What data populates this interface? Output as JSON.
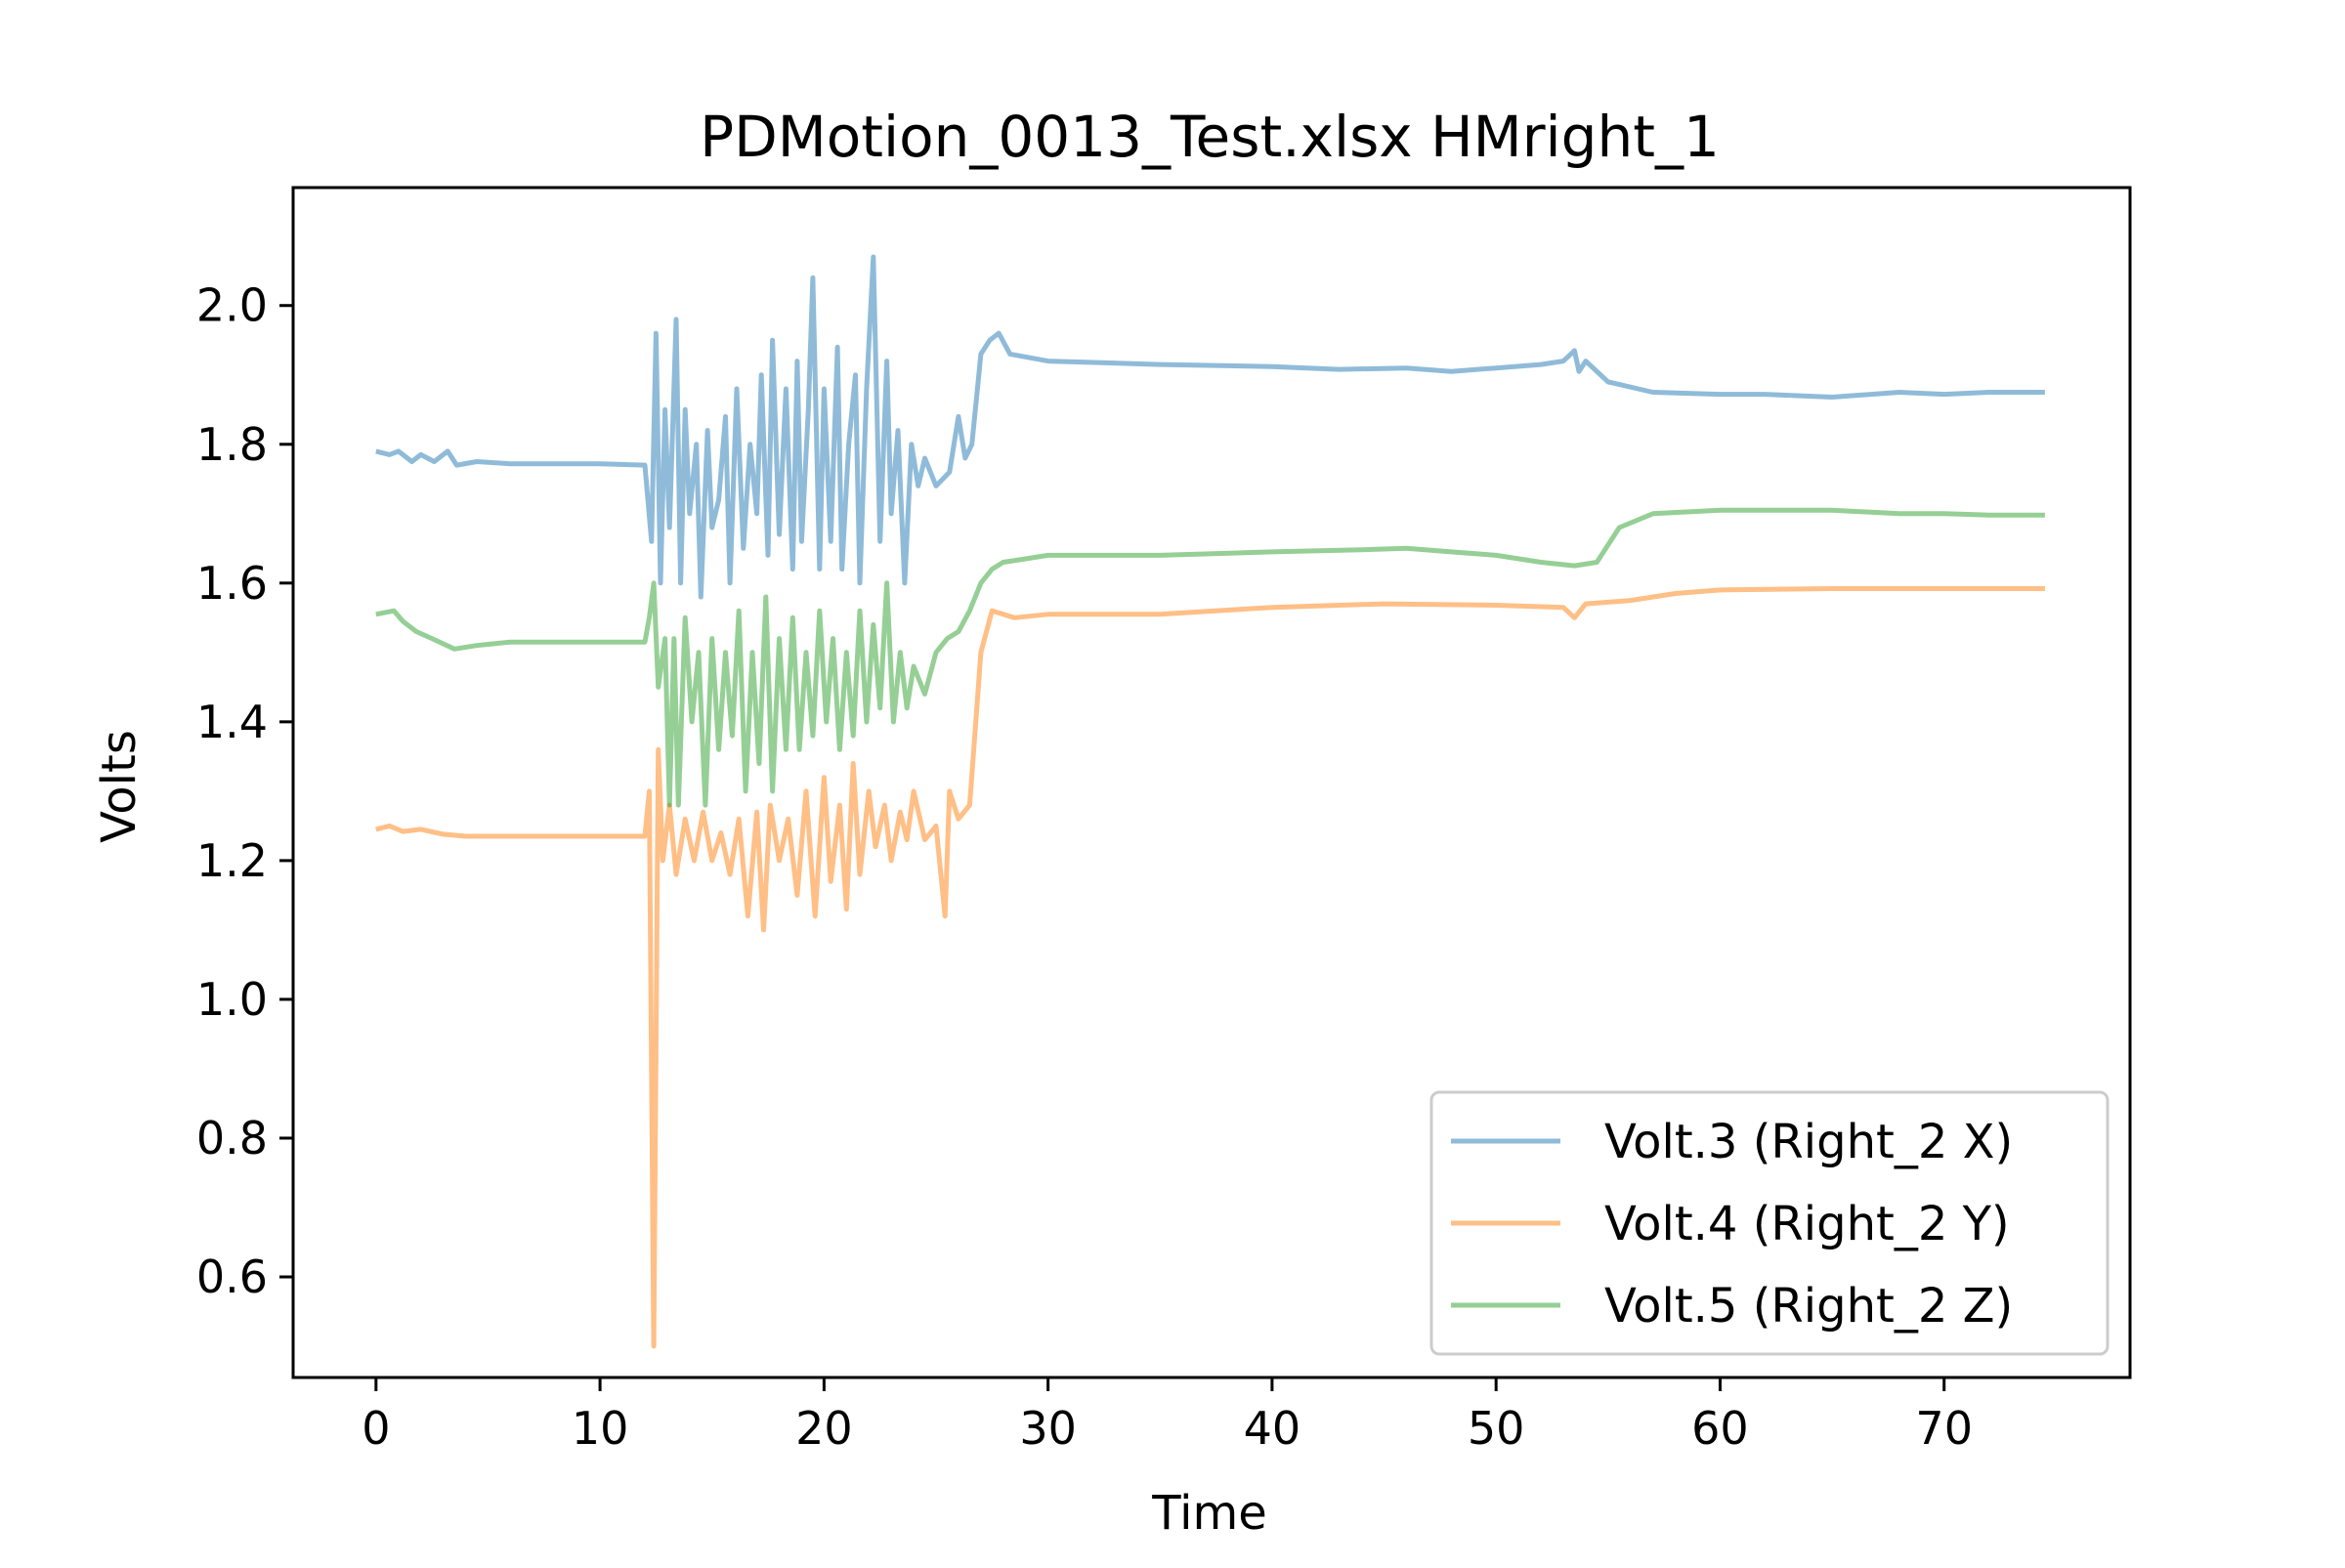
{
  "chart_data": {
    "type": "line",
    "title": "PDMotion_0013_Test.xlsx HMright_1",
    "xlabel": "Time",
    "ylabel": "Volts",
    "xlim": [
      -3.7,
      78.3
    ],
    "ylim": [
      0.455,
      2.17
    ],
    "xticks": [
      "0",
      "10",
      "20",
      "30",
      "40",
      "50",
      "60",
      "70"
    ],
    "yticks": [
      "0.6",
      "0.8",
      "1.0",
      "1.2",
      "1.4",
      "1.6",
      "1.8",
      "2.0"
    ],
    "grid": false,
    "legend_position": "lower right",
    "series": [
      {
        "name": "Volt.3 (Right_2 X)",
        "color": "#1f77b4",
        "points": [
          [
            0,
            1.79
          ],
          [
            0.6,
            1.785
          ],
          [
            1.0,
            1.79
          ],
          [
            1.6,
            1.775
          ],
          [
            2.0,
            1.785
          ],
          [
            2.6,
            1.775
          ],
          [
            3.2,
            1.79
          ],
          [
            3.6,
            1.77
          ],
          [
            4.5,
            1.775
          ],
          [
            6,
            1.772
          ],
          [
            8,
            1.772
          ],
          [
            10,
            1.772
          ],
          [
            12,
            1.77
          ],
          [
            12.3,
            1.66
          ],
          [
            12.5,
            1.96
          ],
          [
            12.7,
            1.6
          ],
          [
            12.9,
            1.85
          ],
          [
            13.1,
            1.68
          ],
          [
            13.4,
            1.98
          ],
          [
            13.6,
            1.6
          ],
          [
            13.8,
            1.85
          ],
          [
            14.0,
            1.7
          ],
          [
            14.3,
            1.8
          ],
          [
            14.5,
            1.58
          ],
          [
            14.8,
            1.82
          ],
          [
            15.0,
            1.68
          ],
          [
            15.3,
            1.72
          ],
          [
            15.6,
            1.84
          ],
          [
            15.8,
            1.6
          ],
          [
            16.1,
            1.88
          ],
          [
            16.4,
            1.65
          ],
          [
            16.7,
            1.8
          ],
          [
            17.0,
            1.7
          ],
          [
            17.2,
            1.9
          ],
          [
            17.5,
            1.64
          ],
          [
            17.7,
            1.95
          ],
          [
            18.0,
            1.67
          ],
          [
            18.3,
            1.88
          ],
          [
            18.6,
            1.62
          ],
          [
            18.8,
            1.92
          ],
          [
            19.0,
            1.66
          ],
          [
            19.3,
            1.85
          ],
          [
            19.5,
            2.04
          ],
          [
            19.8,
            1.62
          ],
          [
            20.0,
            1.88
          ],
          [
            20.3,
            1.66
          ],
          [
            20.6,
            1.94
          ],
          [
            20.8,
            1.62
          ],
          [
            21.1,
            1.8
          ],
          [
            21.4,
            1.9
          ],
          [
            21.6,
            1.6
          ],
          [
            21.9,
            1.88
          ],
          [
            22.2,
            2.07
          ],
          [
            22.5,
            1.66
          ],
          [
            22.8,
            1.92
          ],
          [
            23.0,
            1.7
          ],
          [
            23.3,
            1.82
          ],
          [
            23.6,
            1.6
          ],
          [
            23.9,
            1.8
          ],
          [
            24.2,
            1.74
          ],
          [
            24.5,
            1.78
          ],
          [
            25.0,
            1.74
          ],
          [
            25.6,
            1.76
          ],
          [
            26.0,
            1.84
          ],
          [
            26.3,
            1.78
          ],
          [
            26.6,
            1.8
          ],
          [
            27.0,
            1.93
          ],
          [
            27.4,
            1.95
          ],
          [
            27.8,
            1.96
          ],
          [
            28.3,
            1.93
          ],
          [
            30,
            1.92
          ],
          [
            35,
            1.915
          ],
          [
            40,
            1.912
          ],
          [
            43,
            1.908
          ],
          [
            46,
            1.91
          ],
          [
            48,
            1.905
          ],
          [
            50,
            1.91
          ],
          [
            52,
            1.915
          ],
          [
            53,
            1.92
          ],
          [
            53.5,
            1.935
          ],
          [
            53.7,
            1.905
          ],
          [
            54,
            1.92
          ],
          [
            55,
            1.89
          ],
          [
            57,
            1.875
          ],
          [
            60,
            1.872
          ],
          [
            62,
            1.872
          ],
          [
            65,
            1.868
          ],
          [
            68,
            1.875
          ],
          [
            70,
            1.872
          ],
          [
            72,
            1.875
          ],
          [
            74.5,
            1.875
          ]
        ]
      },
      {
        "name": "Volt.4 (Right_2 Y)",
        "color": "#ff7f0e",
        "points": [
          [
            0,
            1.245
          ],
          [
            0.6,
            1.25
          ],
          [
            1.2,
            1.242
          ],
          [
            2.0,
            1.245
          ],
          [
            3.0,
            1.238
          ],
          [
            4.0,
            1.235
          ],
          [
            6,
            1.235
          ],
          [
            8,
            1.235
          ],
          [
            10,
            1.235
          ],
          [
            12,
            1.235
          ],
          [
            12.2,
            1.3
          ],
          [
            12.4,
            0.5
          ],
          [
            12.6,
            1.36
          ],
          [
            12.8,
            1.2
          ],
          [
            13.1,
            1.28
          ],
          [
            13.4,
            1.18
          ],
          [
            13.8,
            1.26
          ],
          [
            14.2,
            1.2
          ],
          [
            14.6,
            1.27
          ],
          [
            15.0,
            1.2
          ],
          [
            15.4,
            1.24
          ],
          [
            15.8,
            1.18
          ],
          [
            16.2,
            1.26
          ],
          [
            16.6,
            1.12
          ],
          [
            17.0,
            1.27
          ],
          [
            17.3,
            1.1
          ],
          [
            17.6,
            1.28
          ],
          [
            18.0,
            1.2
          ],
          [
            18.4,
            1.26
          ],
          [
            18.8,
            1.15
          ],
          [
            19.2,
            1.3
          ],
          [
            19.6,
            1.12
          ],
          [
            20.0,
            1.32
          ],
          [
            20.3,
            1.17
          ],
          [
            20.7,
            1.28
          ],
          [
            21.0,
            1.13
          ],
          [
            21.3,
            1.34
          ],
          [
            21.6,
            1.18
          ],
          [
            22.0,
            1.3
          ],
          [
            22.3,
            1.22
          ],
          [
            22.7,
            1.28
          ],
          [
            23.0,
            1.2
          ],
          [
            23.4,
            1.27
          ],
          [
            23.7,
            1.23
          ],
          [
            24.0,
            1.3
          ],
          [
            24.5,
            1.23
          ],
          [
            25.0,
            1.25
          ],
          [
            25.4,
            1.12
          ],
          [
            25.6,
            1.3
          ],
          [
            26.0,
            1.26
          ],
          [
            26.5,
            1.28
          ],
          [
            27.0,
            1.5
          ],
          [
            27.5,
            1.56
          ],
          [
            28.5,
            1.55
          ],
          [
            30,
            1.555
          ],
          [
            35,
            1.555
          ],
          [
            40,
            1.565
          ],
          [
            45,
            1.57
          ],
          [
            50,
            1.568
          ],
          [
            53,
            1.565
          ],
          [
            53.5,
            1.55
          ],
          [
            54,
            1.57
          ],
          [
            56,
            1.575
          ],
          [
            58,
            1.585
          ],
          [
            60,
            1.59
          ],
          [
            65,
            1.592
          ],
          [
            70,
            1.592
          ],
          [
            74.5,
            1.592
          ]
        ]
      },
      {
        "name": "Volt.5 (Right_2 Z)",
        "color": "#2ca02c",
        "points": [
          [
            0,
            1.555
          ],
          [
            0.8,
            1.56
          ],
          [
            1.2,
            1.545
          ],
          [
            1.8,
            1.53
          ],
          [
            2.5,
            1.52
          ],
          [
            3.5,
            1.505
          ],
          [
            4.5,
            1.51
          ],
          [
            6,
            1.515
          ],
          [
            8,
            1.515
          ],
          [
            10,
            1.515
          ],
          [
            12,
            1.515
          ],
          [
            12.2,
            1.55
          ],
          [
            12.4,
            1.6
          ],
          [
            12.6,
            1.45
          ],
          [
            12.9,
            1.52
          ],
          [
            13.1,
            1.28
          ],
          [
            13.3,
            1.52
          ],
          [
            13.5,
            1.28
          ],
          [
            13.8,
            1.55
          ],
          [
            14.1,
            1.4
          ],
          [
            14.4,
            1.5
          ],
          [
            14.7,
            1.28
          ],
          [
            15.0,
            1.52
          ],
          [
            15.3,
            1.36
          ],
          [
            15.6,
            1.5
          ],
          [
            15.9,
            1.38
          ],
          [
            16.2,
            1.56
          ],
          [
            16.5,
            1.3
          ],
          [
            16.8,
            1.5
          ],
          [
            17.1,
            1.34
          ],
          [
            17.4,
            1.58
          ],
          [
            17.7,
            1.3
          ],
          [
            18.0,
            1.52
          ],
          [
            18.3,
            1.36
          ],
          [
            18.6,
            1.55
          ],
          [
            18.9,
            1.36
          ],
          [
            19.2,
            1.5
          ],
          [
            19.5,
            1.38
          ],
          [
            19.8,
            1.56
          ],
          [
            20.1,
            1.4
          ],
          [
            20.4,
            1.52
          ],
          [
            20.7,
            1.36
          ],
          [
            21.0,
            1.5
          ],
          [
            21.3,
            1.38
          ],
          [
            21.6,
            1.56
          ],
          [
            21.9,
            1.4
          ],
          [
            22.2,
            1.54
          ],
          [
            22.5,
            1.42
          ],
          [
            22.8,
            1.6
          ],
          [
            23.1,
            1.4
          ],
          [
            23.4,
            1.5
          ],
          [
            23.7,
            1.42
          ],
          [
            24.0,
            1.48
          ],
          [
            24.5,
            1.44
          ],
          [
            25.0,
            1.5
          ],
          [
            25.5,
            1.52
          ],
          [
            26.0,
            1.53
          ],
          [
            26.5,
            1.56
          ],
          [
            27.0,
            1.6
          ],
          [
            27.5,
            1.62
          ],
          [
            28.0,
            1.63
          ],
          [
            29,
            1.635
          ],
          [
            30,
            1.64
          ],
          [
            35,
            1.64
          ],
          [
            40,
            1.645
          ],
          [
            44,
            1.648
          ],
          [
            46,
            1.65
          ],
          [
            48,
            1.645
          ],
          [
            50,
            1.64
          ],
          [
            52,
            1.63
          ],
          [
            53.5,
            1.625
          ],
          [
            54.5,
            1.63
          ],
          [
            55.5,
            1.68
          ],
          [
            57,
            1.7
          ],
          [
            60,
            1.705
          ],
          [
            62,
            1.705
          ],
          [
            65,
            1.705
          ],
          [
            68,
            1.7
          ],
          [
            70,
            1.7
          ],
          [
            72,
            1.698
          ],
          [
            74.5,
            1.698
          ]
        ]
      }
    ]
  }
}
